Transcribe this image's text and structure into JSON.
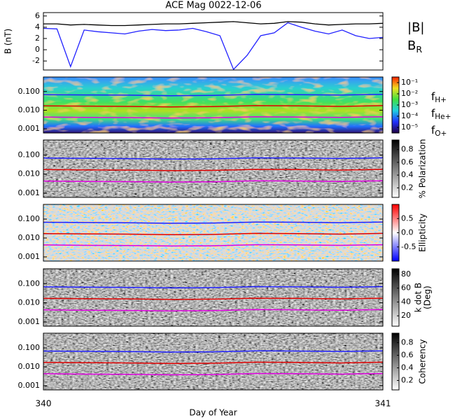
{
  "chart_data": [
    {
      "type": "line",
      "title": "ACE Mag 0022-12-06",
      "ylabel": "B (nT)",
      "xlim": [
        340,
        341
      ],
      "xticks": [
        340,
        341
      ],
      "ylim": [
        -3.6,
        6.6
      ],
      "yticks": [
        -2,
        0,
        2,
        4,
        6
      ],
      "x": [
        340,
        340.04,
        340.08,
        340.12,
        340.16,
        340.2,
        340.24,
        340.28,
        340.32,
        340.36,
        340.4,
        340.44,
        340.48,
        340.52,
        340.56,
        340.6,
        340.64,
        340.68,
        340.72,
        340.76,
        340.8,
        340.84,
        340.88,
        340.92,
        340.96,
        341
      ],
      "series": [
        {
          "name": "|B|",
          "color": "#000000",
          "values": [
            4.6,
            4.6,
            4.4,
            4.5,
            4.4,
            4.3,
            4.3,
            4.4,
            4.5,
            4.6,
            4.6,
            4.7,
            4.8,
            4.9,
            5.0,
            4.8,
            4.6,
            4.7,
            5.0,
            4.9,
            4.6,
            4.4,
            4.5,
            4.6,
            4.6,
            4.7
          ]
        },
        {
          "name": "B",
          "subscript": "R",
          "color": "#2020ff",
          "values": [
            3.8,
            3.7,
            -3.0,
            3.5,
            3.2,
            3.0,
            2.8,
            3.3,
            3.6,
            3.4,
            3.5,
            3.8,
            3.2,
            2.5,
            -3.5,
            -1.0,
            2.5,
            3.0,
            4.8,
            4.0,
            3.3,
            2.8,
            3.5,
            2.5,
            2.0,
            2.2
          ]
        }
      ]
    },
    {
      "type": "spectrogram",
      "style": "rainbow",
      "ylog": true,
      "xlim": [
        340,
        341
      ],
      "xticks": [
        340,
        341
      ],
      "ylim": [
        0.0006,
        0.6
      ],
      "yticks": [
        {
          "value": 0.001,
          "label": "0.001"
        },
        {
          "value": 0.01,
          "label": "0.010"
        },
        {
          "value": 0.1,
          "label": "0.100"
        }
      ],
      "colorbar": {
        "clim": [
          -5.5,
          -0.5
        ],
        "ticks": [
          {
            "value": -1,
            "label": "10⁻¹"
          },
          {
            "value": -2,
            "label": "10⁻²"
          },
          {
            "value": -3,
            "label": "10⁻³"
          },
          {
            "value": -4,
            "label": "10⁻⁴"
          },
          {
            "value": -5,
            "label": "10⁻⁵"
          }
        ]
      },
      "x": [
        340,
        340.125,
        340.25,
        340.375,
        340.5,
        340.625,
        340.75,
        340.875,
        341
      ],
      "series": [
        {
          "name": "f",
          "subscript": "H+",
          "color": "#2020ff",
          "values": [
            0.068,
            0.066,
            0.064,
            0.06,
            0.062,
            0.07,
            0.068,
            0.065,
            0.07
          ]
        },
        {
          "name": "f",
          "subscript": "He+",
          "color": "#e00000",
          "values": [
            0.017,
            0.0165,
            0.016,
            0.015,
            0.0155,
            0.0175,
            0.017,
            0.016,
            0.0175
          ]
        },
        {
          "name": "f",
          "subscript": "O+",
          "color": "#e000e0",
          "values": [
            0.0043,
            0.0041,
            0.004,
            0.0038,
            0.0039,
            0.0044,
            0.0043,
            0.0041,
            0.0044
          ]
        }
      ]
    },
    {
      "type": "spectrogram",
      "style": "gray",
      "ylog": true,
      "xlim": [
        340,
        341
      ],
      "xticks": [
        340,
        341
      ],
      "ylim": [
        0.0006,
        0.6
      ],
      "yticks": [
        {
          "value": 0.001,
          "label": "0.001"
        },
        {
          "value": 0.01,
          "label": "0.010"
        },
        {
          "value": 0.1,
          "label": "0.100"
        }
      ],
      "colorbar": {
        "label": "% Polarization",
        "clim": [
          0.05,
          0.95
        ],
        "ticks": [
          0.2,
          0.4,
          0.6,
          0.8
        ]
      },
      "x": [
        340,
        340.125,
        340.25,
        340.375,
        340.5,
        340.625,
        340.75,
        340.875,
        341
      ],
      "series": [
        {
          "color": "#2020ff",
          "values": [
            0.068,
            0.066,
            0.064,
            0.06,
            0.062,
            0.07,
            0.068,
            0.065,
            0.07
          ]
        },
        {
          "color": "#e00000",
          "values": [
            0.017,
            0.0165,
            0.016,
            0.015,
            0.0155,
            0.0175,
            0.017,
            0.016,
            0.0175
          ]
        },
        {
          "color": "#e000e0",
          "values": [
            0.0043,
            0.0041,
            0.004,
            0.0038,
            0.0039,
            0.0044,
            0.0043,
            0.0041,
            0.0044
          ]
        }
      ]
    },
    {
      "type": "spectrogram",
      "style": "diverging",
      "ylog": true,
      "xlim": [
        340,
        341
      ],
      "xticks": [
        340,
        341
      ],
      "ylim": [
        0.0006,
        0.6
      ],
      "yticks": [
        {
          "value": 0.001,
          "label": "0.001"
        },
        {
          "value": 0.01,
          "label": "0.010"
        },
        {
          "value": 0.1,
          "label": "0.100"
        }
      ],
      "colorbar": {
        "label": "Ellipticity",
        "clim": [
          -1,
          1
        ],
        "ticks": [
          -0.5,
          {
            "value": 0,
            "label": "0.0"
          },
          0.5
        ]
      },
      "x": [
        340,
        340.125,
        340.25,
        340.375,
        340.5,
        340.625,
        340.75,
        340.875,
        341
      ],
      "series": [
        {
          "color": "#2020ff",
          "values": [
            0.068,
            0.066,
            0.064,
            0.06,
            0.062,
            0.07,
            0.068,
            0.065,
            0.07
          ]
        },
        {
          "color": "#e00000",
          "values": [
            0.017,
            0.0165,
            0.016,
            0.015,
            0.0155,
            0.0175,
            0.017,
            0.016,
            0.0175
          ]
        },
        {
          "color": "#e000e0",
          "values": [
            0.0043,
            0.0041,
            0.004,
            0.0038,
            0.0039,
            0.0044,
            0.0043,
            0.0041,
            0.0044
          ]
        }
      ]
    },
    {
      "type": "spectrogram",
      "style": "gray",
      "ylog": true,
      "xlim": [
        340,
        341
      ],
      "xticks": [
        340,
        341
      ],
      "ylim": [
        0.0006,
        0.6
      ],
      "yticks": [
        {
          "value": 0.001,
          "label": "0.001"
        },
        {
          "value": 0.01,
          "label": "0.010"
        },
        {
          "value": 0.1,
          "label": "0.100"
        }
      ],
      "colorbar": {
        "label": "k dot B",
        "label2": "(Deg)",
        "clim": [
          5,
          88
        ],
        "ticks": [
          20,
          40,
          60,
          80
        ]
      },
      "x": [
        340,
        340.125,
        340.25,
        340.375,
        340.5,
        340.625,
        340.75,
        340.875,
        341
      ],
      "series": [
        {
          "color": "#2020ff",
          "values": [
            0.068,
            0.066,
            0.064,
            0.06,
            0.062,
            0.07,
            0.068,
            0.065,
            0.07
          ]
        },
        {
          "color": "#e00000",
          "values": [
            0.017,
            0.0165,
            0.016,
            0.015,
            0.0155,
            0.0175,
            0.017,
            0.016,
            0.0175
          ]
        },
        {
          "color": "#e000e0",
          "values": [
            0.0043,
            0.0041,
            0.004,
            0.0038,
            0.0039,
            0.0044,
            0.0043,
            0.0041,
            0.0044
          ]
        }
      ]
    },
    {
      "type": "spectrogram",
      "style": "gray",
      "ylog": true,
      "xlim": [
        340,
        341
      ],
      "xticks": [
        340,
        341
      ],
      "xlabel": "Day of Year",
      "ylim": [
        0.0006,
        0.6
      ],
      "yticks": [
        {
          "value": 0.001,
          "label": "0.001"
        },
        {
          "value": 0.01,
          "label": "0.010"
        },
        {
          "value": 0.1,
          "label": "0.100"
        }
      ],
      "colorbar": {
        "label": "Coherency",
        "clim": [
          0.05,
          0.95
        ],
        "ticks": [
          0.2,
          0.4,
          0.6,
          0.8
        ]
      },
      "x": [
        340,
        340.125,
        340.25,
        340.375,
        340.5,
        340.625,
        340.75,
        340.875,
        341
      ],
      "series": [
        {
          "color": "#2020ff",
          "values": [
            0.068,
            0.066,
            0.064,
            0.06,
            0.062,
            0.07,
            0.068,
            0.065,
            0.07
          ]
        },
        {
          "color": "#e00000",
          "values": [
            0.017,
            0.0165,
            0.016,
            0.015,
            0.0155,
            0.0175,
            0.017,
            0.016,
            0.0175
          ]
        },
        {
          "color": "#e000e0",
          "values": [
            0.0043,
            0.0041,
            0.004,
            0.0038,
            0.0039,
            0.0044,
            0.0043,
            0.0041,
            0.0044
          ]
        }
      ]
    }
  ]
}
